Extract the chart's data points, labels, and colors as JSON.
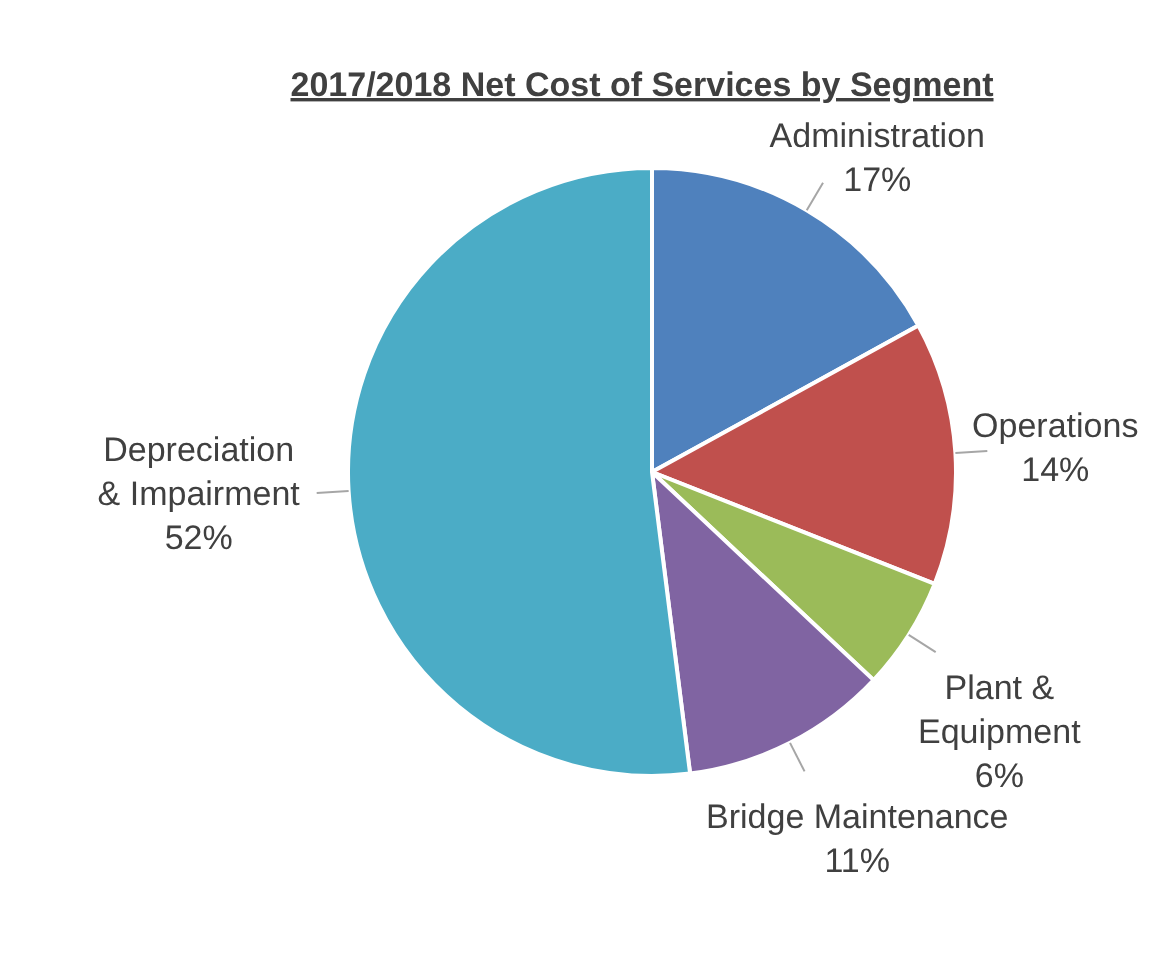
{
  "chart_data": {
    "type": "pie",
    "title": "2017/2018 Net Cost of Services by Segment",
    "categories": [
      "Administration",
      "Operations",
      "Plant & Equipment",
      "Bridge Maintenance",
      "Depreciation & Impairment"
    ],
    "values": [
      17,
      14,
      6,
      11,
      52
    ],
    "colors": [
      "#4f81bd",
      "#c0504d",
      "#9bbb59",
      "#8064a2",
      "#4bacc6"
    ],
    "value_labels": [
      "17%",
      "14%",
      "6%",
      "11%",
      "52%"
    ]
  }
}
